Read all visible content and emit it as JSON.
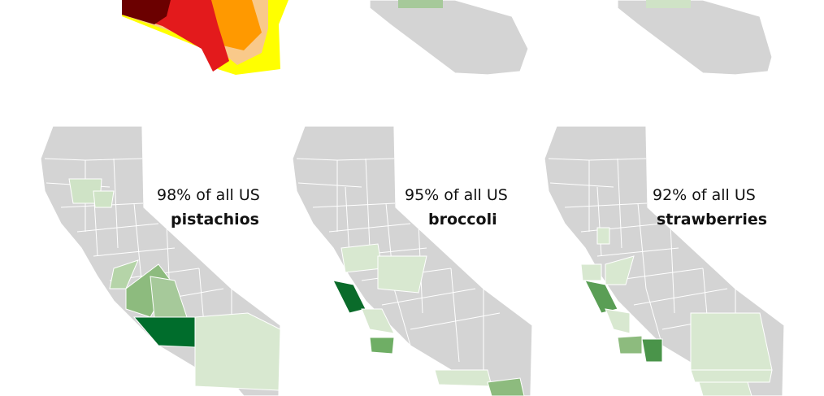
{
  "panels": [
    {
      "line1": "98% of all US",
      "line2": "pistachios"
    },
    {
      "line1": "95% of all US",
      "line2": "broccoli"
    },
    {
      "line1": "92% of all US",
      "line2": "strawberries"
    }
  ]
}
